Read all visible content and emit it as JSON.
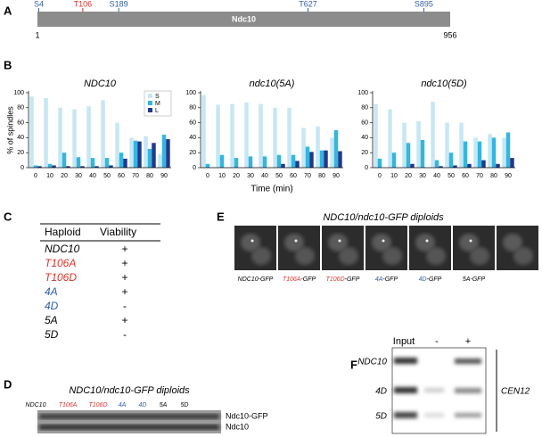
{
  "panel_labels": [
    "A",
    "B",
    "C",
    "D",
    "E",
    "F"
  ],
  "protein": {
    "name": "Ndc10",
    "start": 1,
    "end": 956,
    "sites": [
      {
        "label": "S4",
        "position": 4,
        "color": "#2f5fa8"
      },
      {
        "label": "T106",
        "position": 106,
        "color": "#d9342b"
      },
      {
        "label": "S189",
        "position": 189,
        "color": "#2f5fa8"
      },
      {
        "label": "T627",
        "position": 627,
        "color": "#2f5fa8"
      },
      {
        "label": "S895",
        "position": 895,
        "color": "#2f5fa8"
      }
    ]
  },
  "chart_data": [
    {
      "type": "bar",
      "title": "NDC10",
      "ylabel": "% of spindles",
      "legend": "upper right",
      "categories": [
        0,
        10,
        20,
        30,
        40,
        50,
        60,
        70,
        80,
        90
      ],
      "series": [
        {
          "name": "S",
          "color": "#c6e7f4",
          "values": [
            95,
            93,
            80,
            78,
            82,
            90,
            60,
            40,
            42,
            18
          ]
        },
        {
          "name": "M",
          "color": "#33b6df",
          "values": [
            3,
            5,
            20,
            14,
            13,
            13,
            20,
            36,
            25,
            44
          ]
        },
        {
          "name": "L",
          "color": "#1f3a8c",
          "values": [
            2,
            3,
            2,
            2,
            2,
            3,
            12,
            35,
            33,
            38
          ]
        }
      ],
      "ylim": [
        0,
        100
      ],
      "yticks": [
        0,
        20,
        40,
        60,
        80,
        100
      ]
    },
    {
      "type": "bar",
      "title": "ndc10(5A)",
      "xlabel": "Time (min)",
      "categories": [
        0,
        10,
        20,
        30,
        40,
        50,
        60,
        70,
        80,
        90
      ],
      "series": [
        {
          "name": "S",
          "color": "#c6e7f4",
          "values": [
            97,
            84,
            85,
            87,
            85,
            80,
            80,
            53,
            55,
            40
          ]
        },
        {
          "name": "M",
          "color": "#33b6df",
          "values": [
            5,
            17,
            13,
            15,
            15,
            17,
            17,
            28,
            23,
            50
          ]
        },
        {
          "name": "L",
          "color": "#1f3a8c",
          "values": [
            0,
            0,
            0,
            0,
            0,
            5,
            9,
            21,
            23,
            22
          ]
        }
      ],
      "ylim": [
        0,
        100
      ],
      "yticks": [
        0,
        20,
        40,
        60,
        80,
        100
      ]
    },
    {
      "type": "bar",
      "title": "ndc10(5D)",
      "categories": [
        0,
        10,
        20,
        30,
        40,
        50,
        60,
        70,
        80,
        90
      ],
      "series": [
        {
          "name": "S",
          "color": "#c6e7f4",
          "values": [
            85,
            78,
            60,
            62,
            88,
            60,
            60,
            40,
            45,
            40
          ]
        },
        {
          "name": "M",
          "color": "#33b6df",
          "values": [
            12,
            20,
            33,
            37,
            10,
            20,
            35,
            35,
            40,
            47
          ]
        },
        {
          "name": "L",
          "color": "#1f3a8c",
          "values": [
            0,
            0,
            5,
            0,
            2,
            3,
            5,
            10,
            5,
            13
          ]
        }
      ],
      "ylim": [
        0,
        100
      ],
      "yticks": [
        0,
        20,
        40,
        60,
        80,
        100
      ]
    }
  ],
  "table": {
    "header": [
      "Haploid",
      "Viability"
    ],
    "rows": [
      {
        "strain": "NDC10",
        "viability": "+",
        "color": "#000000"
      },
      {
        "strain": "T106A",
        "viability": "+",
        "color": "#d9342b"
      },
      {
        "strain": "T106D",
        "viability": "+",
        "color": "#d9342b"
      },
      {
        "strain": "4A",
        "viability": "+",
        "color": "#2f5fa8"
      },
      {
        "strain": "4D",
        "viability": "-",
        "color": "#2f5fa8"
      },
      {
        "strain": "5A",
        "viability": "+",
        "color": "#000000"
      },
      {
        "strain": "5D",
        "viability": "-",
        "color": "#000000"
      }
    ]
  },
  "western": {
    "title": "NDC10/ndc10-GFP diploids",
    "lanes": [
      {
        "label": "NDC10",
        "color": "#000000"
      },
      {
        "label": "T106A",
        "color": "#d9342b"
      },
      {
        "label": "T106D",
        "color": "#d9342b"
      },
      {
        "label": "4A",
        "color": "#2f5fa8"
      },
      {
        "label": "4D",
        "color": "#2f5fa8"
      },
      {
        "label": "5A",
        "color": "#000000"
      },
      {
        "label": "5D",
        "color": "#000000"
      }
    ],
    "bands": [
      "Ndc10-GFP",
      "Ndc10"
    ]
  },
  "microscopy": {
    "title": "NDC10/ndc10-GFP diploids",
    "captions": [
      {
        "strain": "NDC10",
        "suffix": "-GFP",
        "color": "#000000"
      },
      {
        "strain": "T106A",
        "suffix": "-GFP",
        "color": "#d9342b"
      },
      {
        "strain": "T106D",
        "suffix": "-GFP",
        "color": "#d9342b"
      },
      {
        "strain": "4A",
        "suffix": "-GFP",
        "color": "#2f5fa8"
      },
      {
        "strain": "4D",
        "suffix": "-GFP",
        "color": "#2f5fa8"
      },
      {
        "strain": "5A",
        "suffix": "-GFP",
        "color": "#000000"
      }
    ]
  },
  "chip": {
    "columns": [
      "Input",
      "-",
      "+"
    ],
    "rows": [
      "NDC10",
      "4D",
      "5D"
    ],
    "locus": "CEN12"
  }
}
